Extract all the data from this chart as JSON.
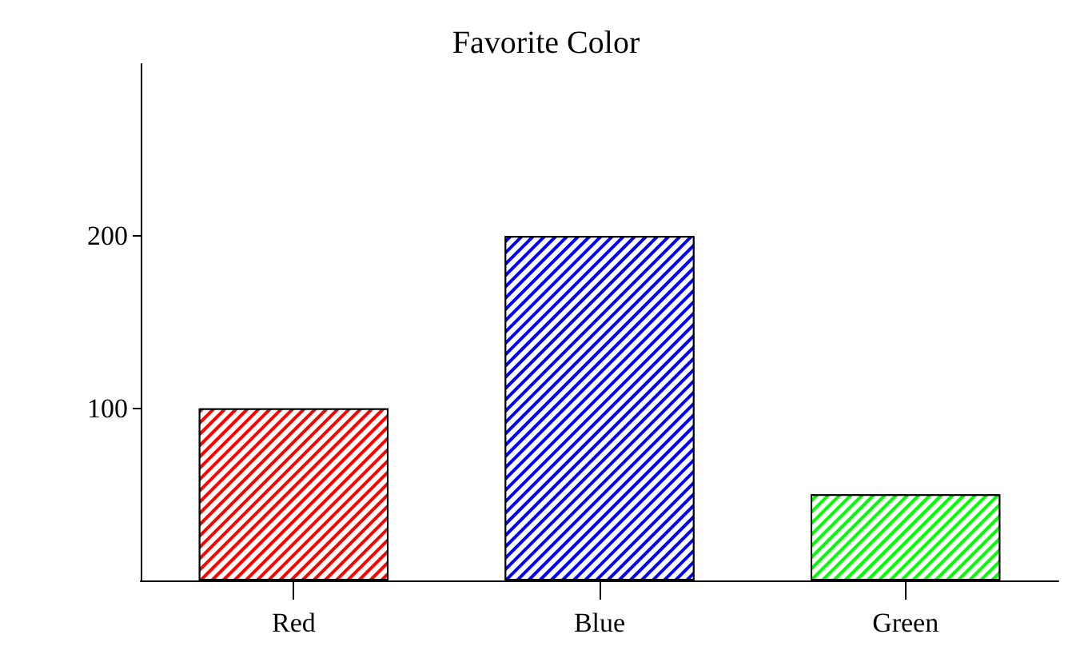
{
  "chart_data": {
    "type": "bar",
    "title": "Favorite Color",
    "categories": [
      "Red",
      "Blue",
      "Green"
    ],
    "values": [
      100,
      200,
      50
    ],
    "colors": [
      "#ff0000",
      "#0000ff",
      "#00ff00"
    ],
    "ylim": [
      0,
      300
    ],
    "yticks": [
      100,
      200
    ],
    "grid": false
  }
}
